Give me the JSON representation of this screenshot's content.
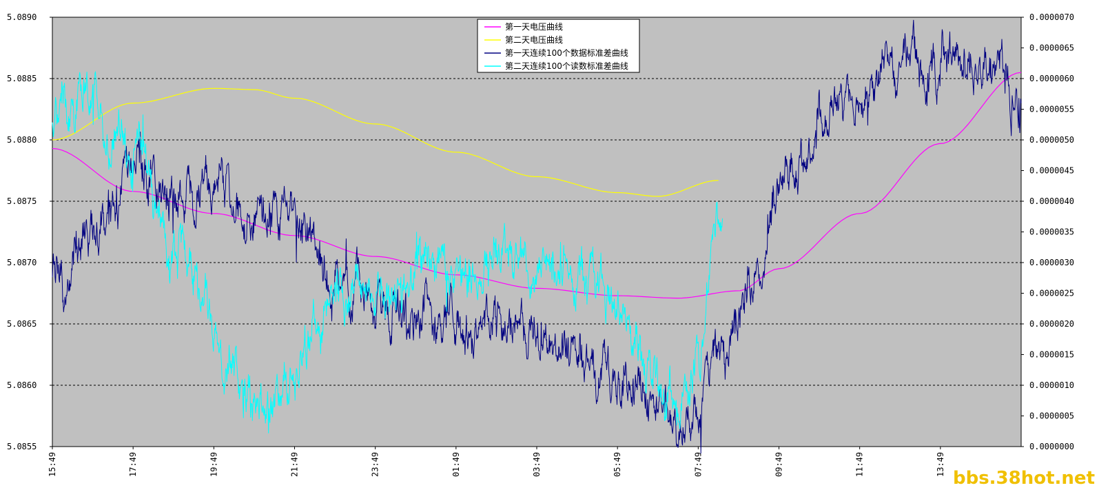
{
  "chart_data": {
    "type": "line",
    "title": "",
    "xlabel": "",
    "ylabel": "",
    "y_left_lim": [
      5.0855,
      5.089
    ],
    "y_right_lim": [
      0.0,
      7e-06
    ],
    "y_left_ticks": [
      "5.0855",
      "5.0860",
      "5.0865",
      "5.0870",
      "5.0875",
      "5.0880",
      "5.0885",
      "5.0890"
    ],
    "y_right_ticks": [
      "0.0000000",
      "0.0000005",
      "0.0000010",
      "0.0000015",
      "0.0000020",
      "0.0000025",
      "0.0000030",
      "0.0000035",
      "0.0000040",
      "0.0000045",
      "0.0000050",
      "0.0000055",
      "0.0000060",
      "0.0000065",
      "0.0000070"
    ],
    "x_tick_labels": [
      "15:49",
      "17:49",
      "19:49",
      "21:49",
      "23:49",
      "01:49",
      "03:49",
      "05:49",
      "07:49",
      "09:49",
      "11:49",
      "13:49"
    ],
    "x_range_hours": [
      0,
      24
    ],
    "grid": true,
    "plot_background": "#c0c0c0",
    "legend_position": "top-center",
    "series": [
      {
        "name": "第一天电压曲线",
        "axis": "left",
        "color": "#ff00ff",
        "x": [
          0,
          2,
          4,
          6,
          8,
          10,
          12,
          14,
          15.5,
          17,
          18,
          20,
          22,
          24
        ],
        "values": [
          5.08793,
          5.08758,
          5.0874,
          5.08722,
          5.08705,
          5.0869,
          5.08679,
          5.08673,
          5.08671,
          5.08677,
          5.08695,
          5.0874,
          5.08797,
          5.08855
        ]
      },
      {
        "name": "第二天电压曲线",
        "axis": "left",
        "color": "#ffff00",
        "x": [
          0,
          2,
          4,
          5,
          6,
          8,
          10,
          12,
          14,
          15,
          16.5
        ],
        "values": [
          5.088,
          5.0883,
          5.08842,
          5.08841,
          5.08834,
          5.08813,
          5.0879,
          5.0877,
          5.08757,
          5.08754,
          5.08767
        ]
      },
      {
        "name": "第一天连续100个数据标准差曲线",
        "axis": "right",
        "color": "#000080",
        "x": [
          0,
          0.2,
          0.4,
          0.6,
          1,
          1.5,
          2,
          2.5,
          3,
          3.5,
          4,
          4.5,
          5,
          5.5,
          6,
          6.5,
          7,
          7.5,
          8,
          8.5,
          9,
          9.5,
          10,
          10.5,
          11,
          11.5,
          12,
          12.5,
          13,
          13.5,
          14,
          14.5,
          15,
          15.5,
          15.8,
          16,
          16.3,
          16.6,
          17,
          17.5,
          18,
          18.5,
          19,
          19.5,
          20,
          20.5,
          21,
          21.5,
          22,
          22.5,
          23,
          23.5,
          24
        ],
        "values": [
          3e-06,
          2.8e-06,
          2.5e-06,
          3.3e-06,
          3.4e-06,
          3.8e-06,
          4.4e-06,
          4.3e-06,
          4.2e-06,
          4.2e-06,
          4.1e-06,
          4e-06,
          3.9e-06,
          3.8e-06,
          3.7e-06,
          3.3e-06,
          2.9e-06,
          2.6e-06,
          2.4e-06,
          2.3e-06,
          2.2e-06,
          2.1e-06,
          2.1e-06,
          2e-06,
          1.9e-06,
          1.9e-06,
          1.7e-06,
          1.6e-06,
          1.4e-06,
          1.2e-06,
          1.1e-06,
          9e-07,
          7e-07,
          5e-07,
          5e-07,
          8e-07,
          1.2e-06,
          1.6e-06,
          2.2e-06,
          3e-06,
          4e-06,
          4.7e-06,
          5.3e-06,
          5.6e-06,
          5.8e-06,
          6e-06,
          6.1e-06,
          6.2e-06,
          6.1e-06,
          6.2e-06,
          6.1e-06,
          6e-06,
          5.6e-06
        ]
      },
      {
        "name": "第二天连续100个读数标准差曲线",
        "axis": "right",
        "color": "#00ffff",
        "x": [
          0,
          0.4,
          0.8,
          1.2,
          1.6,
          2,
          2.5,
          3,
          3.5,
          3.8,
          4.2,
          4.5,
          5,
          5.5,
          6,
          6.5,
          7,
          7.5,
          8,
          8.5,
          9,
          9.5,
          10,
          10.5,
          11,
          11.5,
          12,
          12.5,
          13,
          13.5,
          14,
          14.5,
          15,
          15.5,
          16,
          16.3,
          16.6
        ],
        "values": [
          5.5e-06,
          5.7e-06,
          5.8e-06,
          5.4e-06,
          5.2e-06,
          4.7e-06,
          4e-06,
          3.3e-06,
          2.9e-06,
          2.2e-06,
          1.4e-06,
          1e-06,
          5e-07,
          7e-07,
          1.2e-06,
          1.8e-06,
          2.4e-06,
          2.6e-06,
          2.7e-06,
          2.7e-06,
          2.9e-06,
          3.1e-06,
          3e-06,
          2.9e-06,
          3e-06,
          3e-06,
          2.9e-06,
          3.1e-06,
          3e-06,
          2.6e-06,
          2.2e-06,
          1.6e-06,
          1e-06,
          6e-07,
          1.5e-06,
          2.8e-06,
          3.7e-06
        ]
      }
    ]
  },
  "watermark": "bbs.38hot.net"
}
